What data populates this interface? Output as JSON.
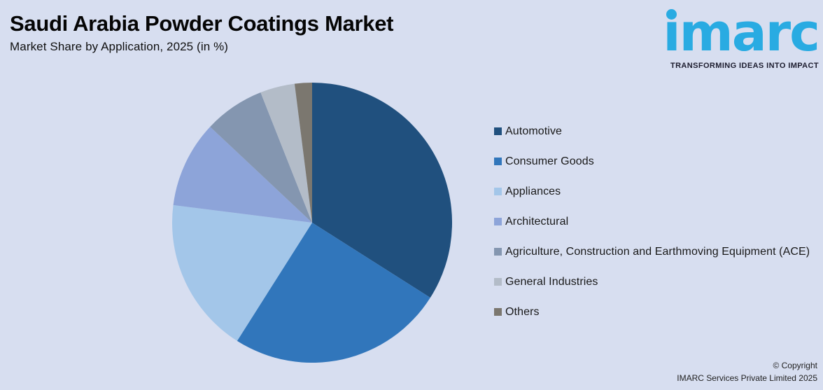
{
  "header": {
    "title": "Saudi Arabia Powder Coatings Market",
    "subtitle": "Market Share by Application, 2025 (in %)"
  },
  "logo": {
    "text": "imarc",
    "tagline": "TRANSFORMING IDEAS INTO IMPACT",
    "brand_color": "#29abe2",
    "tagline_color": "#1c1c2e"
  },
  "chart_data": {
    "type": "pie",
    "title": "Saudi Arabia Powder Coatings Market",
    "subtitle": "Market Share by Application, 2025 (in %)",
    "unit": "%",
    "start_angle_deg": 0,
    "direction": "clockwise",
    "legend_position": "right",
    "value_labels_shown": false,
    "series": [
      {
        "name": "Automotive",
        "value": 34,
        "color": "#20507e"
      },
      {
        "name": "Consumer Goods",
        "value": 25,
        "color": "#3176bb"
      },
      {
        "name": "Appliances",
        "value": 18,
        "color": "#a3c6e9"
      },
      {
        "name": "Architectural",
        "value": 10,
        "color": "#8da4d9"
      },
      {
        "name": "Agriculture, Construction and Earthmoving Equipment (ACE)",
        "value": 7,
        "color": "#8496b0"
      },
      {
        "name": "General Industries",
        "value": 4,
        "color": "#b3bcc8"
      },
      {
        "name": "Others",
        "value": 2,
        "color": "#7b776f"
      }
    ]
  },
  "footer": {
    "copyright_line1": "© Copyright",
    "copyright_line2": "IMARC Services Private Limited 2025"
  },
  "colors": {
    "background": "#d7def0"
  }
}
